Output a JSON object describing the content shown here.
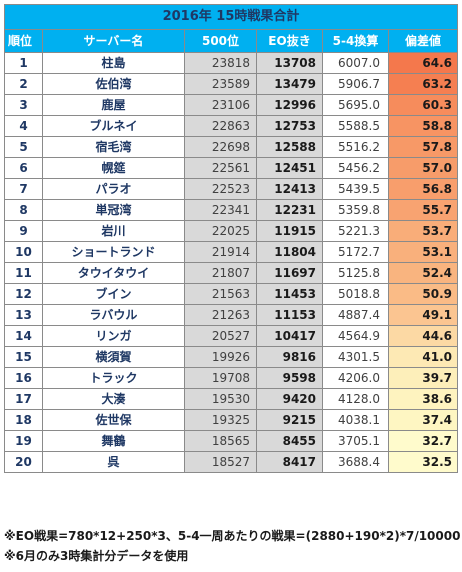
{
  "title": "2016年 15時戦果合計",
  "headers": [
    "順位",
    "サーバー名",
    "500位",
    "EO抜き",
    "5-4換算",
    "偏差値"
  ],
  "rows": [
    {
      "rank": "1",
      "server": "柱島",
      "r500": "23818",
      "eo": "13708",
      "c54": "6007.0",
      "dev": "64.6",
      "color": "#f4784c"
    },
    {
      "rank": "2",
      "server": "佐伯湾",
      "r500": "23589",
      "eo": "13479",
      "c54": "5906.7",
      "dev": "63.2",
      "color": "#f57f51"
    },
    {
      "rank": "3",
      "server": "鹿屋",
      "r500": "23106",
      "eo": "12996",
      "c54": "5695.0",
      "dev": "60.3",
      "color": "#f68c5c"
    },
    {
      "rank": "4",
      "server": "ブルネイ",
      "r500": "22863",
      "eo": "12753",
      "c54": "5588.5",
      "dev": "58.8",
      "color": "#f79463"
    },
    {
      "rank": "5",
      "server": "宿毛湾",
      "r500": "22698",
      "eo": "12588",
      "c54": "5516.2",
      "dev": "57.8",
      "color": "#f79967"
    },
    {
      "rank": "6",
      "server": "幌筵",
      "r500": "22561",
      "eo": "12451",
      "c54": "5456.2",
      "dev": "57.0",
      "color": "#f79c6a"
    },
    {
      "rank": "7",
      "server": "パラオ",
      "r500": "22523",
      "eo": "12413",
      "c54": "5439.5",
      "dev": "56.8",
      "color": "#f89e6c"
    },
    {
      "rank": "8",
      "server": "単冠湾",
      "r500": "22341",
      "eo": "12231",
      "c54": "5359.8",
      "dev": "55.7",
      "color": "#f8a371"
    },
    {
      "rank": "9",
      "server": "岩川",
      "r500": "22025",
      "eo": "11915",
      "c54": "5221.3",
      "dev": "53.7",
      "color": "#f9ad79"
    },
    {
      "rank": "10",
      "server": "ショートランド",
      "r500": "21914",
      "eo": "11804",
      "c54": "5172.7",
      "dev": "53.1",
      "color": "#f9b07c"
    },
    {
      "rank": "11",
      "server": "タウイタウイ",
      "r500": "21807",
      "eo": "11697",
      "c54": "5125.8",
      "dev": "52.4",
      "color": "#f9b47f"
    },
    {
      "rank": "12",
      "server": "ブイン",
      "r500": "21563",
      "eo": "11453",
      "c54": "5018.8",
      "dev": "50.9",
      "color": "#fabb86"
    },
    {
      "rank": "13",
      "server": "ラバウル",
      "r500": "21263",
      "eo": "11153",
      "c54": "4887.4",
      "dev": "49.1",
      "color": "#fbc591"
    },
    {
      "rank": "14",
      "server": "リンガ",
      "r500": "20527",
      "eo": "10417",
      "c54": "4564.9",
      "dev": "44.6",
      "color": "#fcd9a4"
    },
    {
      "rank": "15",
      "server": "横須賀",
      "r500": "19926",
      "eo": "9816",
      "c54": "4301.5",
      "dev": "41.0",
      "color": "#fde9b4"
    },
    {
      "rank": "16",
      "server": "トラック",
      "r500": "19708",
      "eo": "9598",
      "c54": "4206.0",
      "dev": "39.7",
      "color": "#fdefba"
    },
    {
      "rank": "17",
      "server": "大湊",
      "r500": "19530",
      "eo": "9420",
      "c54": "4128.0",
      "dev": "38.6",
      "color": "#fef3bf"
    },
    {
      "rank": "18",
      "server": "佐世保",
      "r500": "19325",
      "eo": "9215",
      "c54": "4038.1",
      "dev": "37.4",
      "color": "#fef6c2"
    },
    {
      "rank": "19",
      "server": "舞鶴",
      "r500": "18565",
      "eo": "8455",
      "c54": "3705.1",
      "dev": "32.7",
      "color": "#fffbcc"
    },
    {
      "rank": "20",
      "server": "呉",
      "r500": "18527",
      "eo": "8417",
      "c54": "3688.4",
      "dev": "32.5",
      "color": "#fffbcc"
    }
  ],
  "notes": [
    "※EO戦果=780*12+250*3、5-4一周あたりの戦果=(2880+190*2)*7/10000",
    "※6月のみ3時集計分データを使用"
  ]
}
